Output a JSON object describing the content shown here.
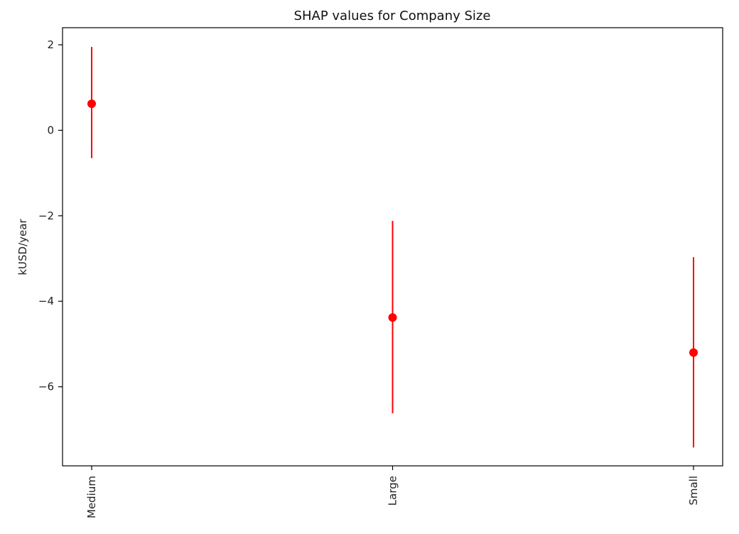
{
  "chart_data": {
    "type": "scatter",
    "title": "SHAP values for Company Size",
    "xlabel": "",
    "ylabel": "kUSD/year",
    "categories": [
      "Medium",
      "Large",
      "Small"
    ],
    "series": [
      {
        "values": [
          0.62,
          -4.38,
          -5.2
        ],
        "error_low": [
          -0.65,
          -6.62,
          -7.42
        ],
        "error_high": [
          1.95,
          -2.12,
          -2.97
        ],
        "color": "#ff0000"
      }
    ],
    "ylim": [
      -7.85,
      2.4
    ],
    "yticks": [
      2,
      0,
      -2,
      -4,
      -6
    ],
    "ytick_labels": [
      "2",
      "0",
      "−2",
      "−4",
      "−6"
    ],
    "grid": false,
    "legend": "none"
  }
}
